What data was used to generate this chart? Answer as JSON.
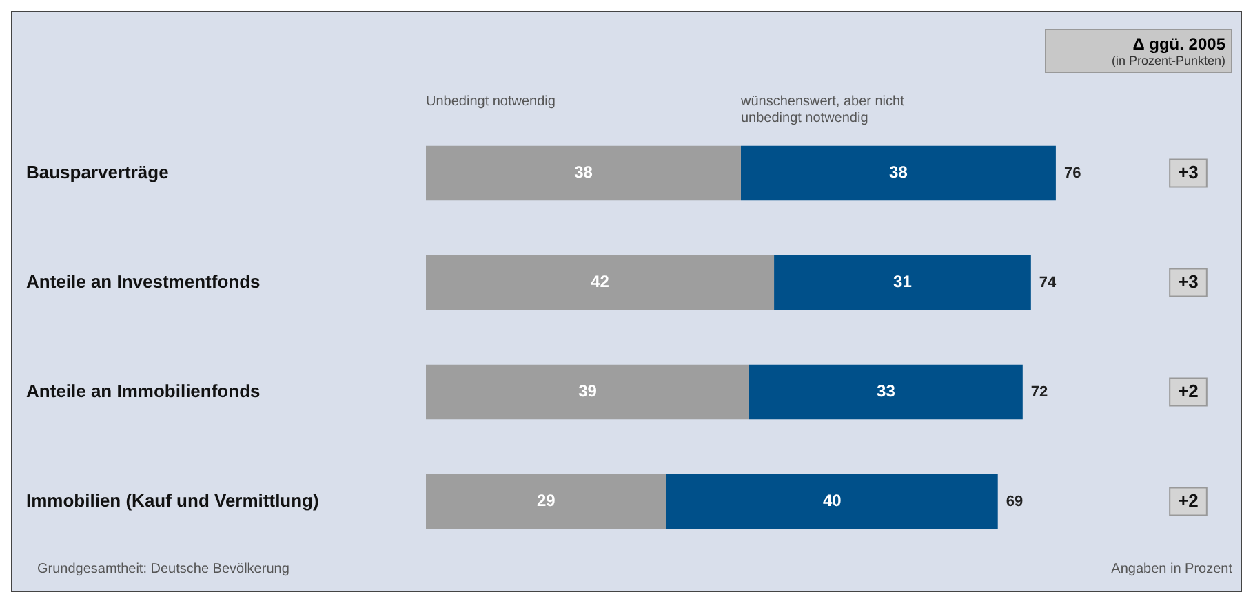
{
  "chart_data": {
    "type": "bar",
    "orientation": "horizontal",
    "stacked": true,
    "categories": [
      "Bausparverträge",
      "Anteile an Investmentfonds",
      "Anteile an Immobilienfonds",
      "Immobilien (Kauf und Vermittlung)"
    ],
    "series": [
      {
        "name": "Unbedingt notwendig",
        "color": "#9e9e9e",
        "values": [
          38,
          42,
          39,
          29
        ]
      },
      {
        "name": "wünschenswert, aber nicht unbedingt notwendig",
        "color": "#00508a",
        "values": [
          38,
          31,
          33,
          40
        ]
      }
    ],
    "tick_labels": "y",
    "grid": false,
    "legend": false,
    "data_labels": true,
    "totals": [
      "76",
      "74",
      "72",
      "69"
    ],
    "annotations": [
      "Δ ggü. 2005",
      "(in Prozent-Punkten)",
      "Grundgesamtheit: Deutsche Bevölkerung",
      "Angaben in Prozent",
      "+3",
      "+3",
      "+2",
      "+2"
    ]
  }
}
